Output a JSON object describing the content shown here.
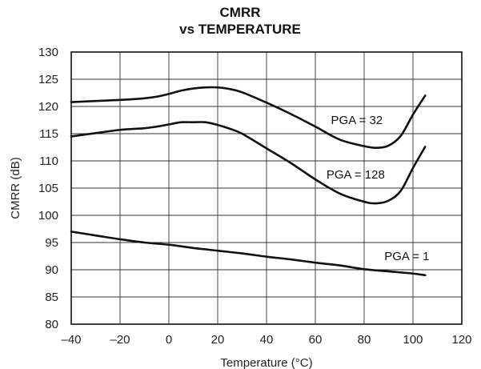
{
  "chart_data": {
    "type": "line",
    "title": "CMRR",
    "subtitle": "vs TEMPERATURE",
    "xlabel": "Temperature (°C)",
    "ylabel": "CMRR (dB)",
    "xlim": [
      -40,
      120
    ],
    "ylim": [
      80,
      130
    ],
    "xticks": [
      -40,
      -20,
      0,
      20,
      40,
      60,
      80,
      100,
      120
    ],
    "yticks": [
      80,
      85,
      90,
      95,
      100,
      105,
      110,
      115,
      120,
      125,
      130
    ],
    "xtick_labels": [
      "–40",
      "–20",
      "0",
      "20",
      "40",
      "60",
      "80",
      "100",
      "120"
    ],
    "ytick_labels": [
      "80",
      "85",
      "90",
      "95",
      "100",
      "105",
      "110",
      "115",
      "120",
      "125",
      "130"
    ],
    "grid": true,
    "series": [
      {
        "name": "PGA = 32",
        "x": [
          -40,
          -30,
          -20,
          -10,
          -5,
          0,
          5,
          10,
          15,
          20,
          25,
          30,
          40,
          50,
          60,
          70,
          80,
          85,
          90,
          95,
          100,
          105
        ],
        "y": [
          120.8,
          121.0,
          121.2,
          121.5,
          121.8,
          122.3,
          122.9,
          123.3,
          123.5,
          123.5,
          123.2,
          122.6,
          120.7,
          118.6,
          116.3,
          113.9,
          112.7,
          112.4,
          112.8,
          114.6,
          118.5,
          122.0
        ]
      },
      {
        "name": "PGA = 128",
        "x": [
          -40,
          -30,
          -20,
          -10,
          -5,
          0,
          5,
          10,
          15,
          20,
          25,
          30,
          40,
          50,
          60,
          70,
          80,
          85,
          90,
          95,
          100,
          105
        ],
        "y": [
          114.5,
          115.1,
          115.7,
          116.0,
          116.3,
          116.7,
          117.1,
          117.1,
          117.1,
          116.6,
          115.9,
          115.0,
          112.3,
          109.6,
          106.6,
          104.0,
          102.5,
          102.2,
          102.7,
          104.5,
          108.7,
          112.6
        ]
      },
      {
        "name": "PGA = 1",
        "x": [
          -40,
          -30,
          -20,
          -10,
          0,
          10,
          20,
          30,
          40,
          50,
          60,
          70,
          80,
          90,
          100,
          105
        ],
        "y": [
          97.0,
          96.3,
          95.6,
          95.0,
          94.6,
          94.0,
          93.5,
          93.0,
          92.4,
          91.9,
          91.3,
          90.8,
          90.1,
          89.7,
          89.3,
          89.0
        ]
      }
    ],
    "annotations": [
      {
        "text": "PGA = 32",
        "x": 77,
        "y": 117.5
      },
      {
        "text": "PGA = 128",
        "x": 76.5,
        "y": 107.5
      },
      {
        "text": "PGA = 1",
        "x": 97.5,
        "y": 92.5
      }
    ]
  }
}
